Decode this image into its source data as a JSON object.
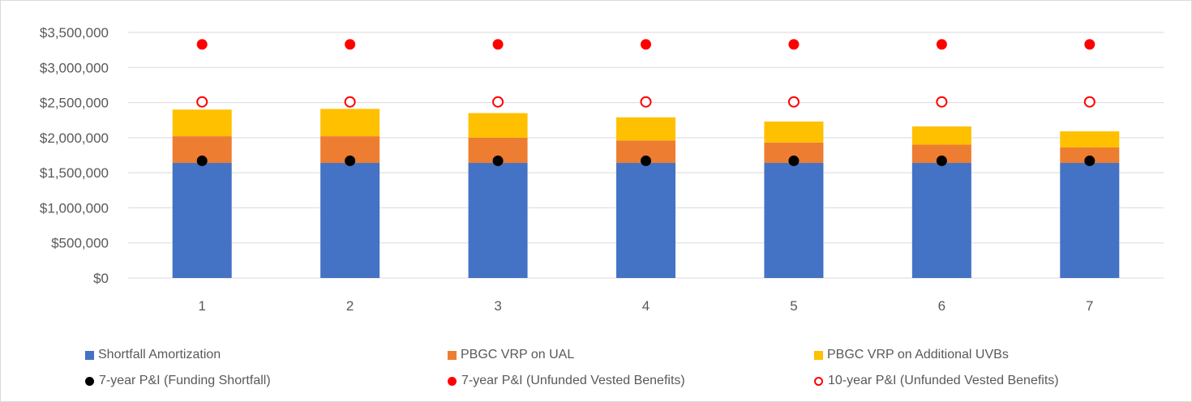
{
  "chart_data": {
    "type": "bar",
    "categories": [
      "1",
      "2",
      "3",
      "4",
      "5",
      "6",
      "7"
    ],
    "ylim": [
      0,
      3500000
    ],
    "yticks": [
      "$0",
      "$500,000",
      "$1,000,000",
      "$1,500,000",
      "$2,000,000",
      "$2,500,000",
      "$3,000,000",
      "$3,500,000"
    ],
    "ytick_values": [
      0,
      500000,
      1000000,
      1500000,
      2000000,
      2500000,
      3000000,
      3500000
    ],
    "grid": true,
    "legend_position": "bottom",
    "stacked_series": [
      {
        "name": "Shortfall Amortization",
        "color": "#4472c4",
        "values": [
          1640000,
          1640000,
          1640000,
          1640000,
          1640000,
          1640000,
          1640000
        ]
      },
      {
        "name": "PBGC VRP on UAL",
        "color": "#ed7d31",
        "values": [
          380000,
          380000,
          360000,
          320000,
          290000,
          260000,
          220000
        ]
      },
      {
        "name": "PBGC VRP on Additional UVBs",
        "color": "#ffc000",
        "values": [
          380000,
          390000,
          350000,
          330000,
          300000,
          260000,
          230000
        ]
      }
    ],
    "point_series": [
      {
        "name": "7-year P&I (Funding Shortfall)",
        "color": "#000000",
        "marker": "filled-circle",
        "values": [
          1670000,
          1670000,
          1670000,
          1670000,
          1670000,
          1670000,
          1670000
        ]
      },
      {
        "name": "7-year P&I (Unfunded Vested Benefits)",
        "color": "#ff0000",
        "marker": "filled-circle",
        "values": [
          3330000,
          3330000,
          3330000,
          3330000,
          3330000,
          3330000,
          3330000
        ]
      },
      {
        "name": "10-year P&I (Unfunded Vested Benefits)",
        "color": "#ff0000",
        "marker": "hollow-circle",
        "values": [
          2510000,
          2510000,
          2510000,
          2510000,
          2510000,
          2510000,
          2510000
        ]
      }
    ]
  },
  "legend": {
    "items": [
      {
        "label": "Shortfall Amortization",
        "swatch": "square",
        "color": "#4472c4"
      },
      {
        "label": "PBGC VRP on UAL",
        "swatch": "square",
        "color": "#ed7d31"
      },
      {
        "label": "PBGC VRP on Additional UVBs",
        "swatch": "square",
        "color": "#ffc000"
      },
      {
        "label": "7-year P&I (Funding Shortfall)",
        "swatch": "dot",
        "color": "#000000"
      },
      {
        "label": "7-year P&I (Unfunded Vested Benefits)",
        "swatch": "dot",
        "color": "#ff0000"
      },
      {
        "label": "10-year P&I (Unfunded Vested Benefits)",
        "swatch": "ring",
        "color": "#ff0000"
      }
    ]
  }
}
